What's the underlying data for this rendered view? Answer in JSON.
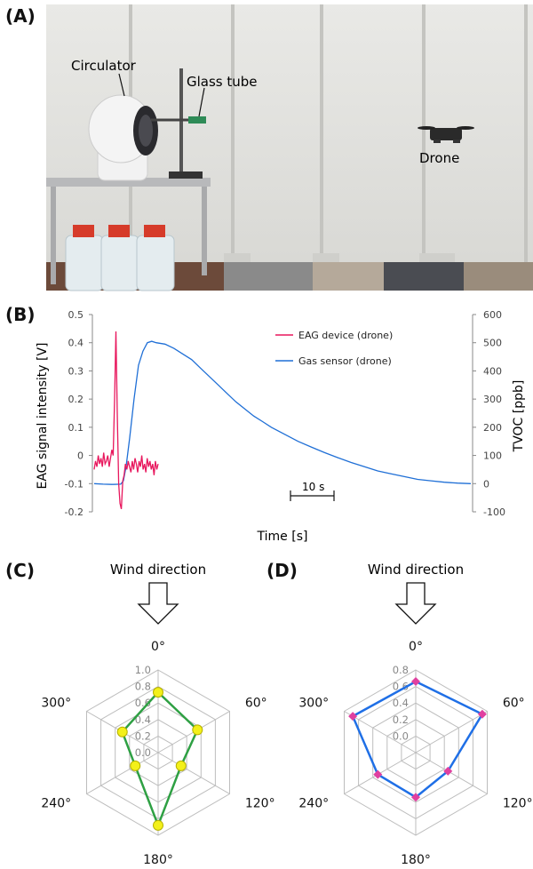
{
  "panels": {
    "a": {
      "label": "(A)",
      "annotations": {
        "circulator": "Circulator",
        "glass_tube": "Glass tube",
        "drone": "Drone"
      }
    },
    "b": {
      "label": "(B)",
      "scale_bar_label": "10 s"
    },
    "c": {
      "label": "(C)",
      "wind_label": "Wind direction"
    },
    "d": {
      "label": "(D)",
      "wind_label": "Wind direction"
    }
  },
  "chart_data": [
    {
      "type": "line",
      "panel": "B",
      "xlabel": "Time [s]",
      "ylabel_left": "EAG signal intensity [V]",
      "ylabel_right": "TVOC [ppb]",
      "ylim_left": [
        -0.2,
        0.5
      ],
      "yticks_left": [
        "0.5",
        "0.4",
        "0.3",
        "0.2",
        "0.1",
        "0",
        "-0.1",
        "-0.2"
      ],
      "ylim_right": [
        -100,
        600
      ],
      "yticks_right": [
        "600",
        "500",
        "400",
        "300",
        "200",
        "100",
        "0",
        "-100"
      ],
      "legend_position": "top-right",
      "series": [
        {
          "name": "EAG device (drone)",
          "axis": "left",
          "color": "#e8175d",
          "x": [
            0,
            1,
            2,
            3,
            4,
            5,
            6,
            7,
            8,
            9,
            10,
            11,
            12,
            13,
            14,
            15,
            16,
            17,
            18,
            19,
            20,
            21,
            22,
            23,
            24,
            25,
            26,
            27,
            28,
            29,
            30,
            31,
            32,
            33,
            34,
            35,
            36,
            37,
            38,
            39,
            40,
            41,
            42,
            43,
            44,
            45,
            46,
            47
          ],
          "values": [
            -0.05,
            -0.02,
            -0.04,
            0.0,
            -0.03,
            -0.01,
            -0.04,
            0.01,
            -0.03,
            -0.02,
            0.0,
            -0.04,
            -0.01,
            0.02,
            0.0,
            0.2,
            0.44,
            0.15,
            -0.1,
            -0.17,
            -0.19,
            -0.09,
            -0.07,
            -0.03,
            -0.05,
            -0.02,
            -0.04,
            -0.06,
            -0.02,
            -0.05,
            -0.01,
            -0.03,
            -0.06,
            -0.02,
            -0.04,
            0.0,
            -0.05,
            -0.03,
            -0.06,
            -0.01,
            -0.04,
            -0.02,
            -0.05,
            -0.03,
            -0.07,
            -0.02,
            -0.05,
            -0.03
          ]
        },
        {
          "name": "Gas sensor (drone)",
          "axis": "right",
          "color": "#1f6fd6",
          "x": [
            0,
            10,
            20,
            30,
            33,
            36,
            40,
            45,
            50,
            55,
            60,
            65,
            70,
            80,
            90,
            100,
            110,
            120,
            130,
            140,
            150,
            160,
            170,
            180,
            190,
            200,
            215,
            230,
            245,
            260,
            275,
            290,
            305,
            320,
            335,
            350,
            365,
            380,
            395,
            410,
            425
          ],
          "values": [
            0,
            -2,
            -3,
            -2,
            10,
            60,
            160,
            300,
            420,
            470,
            500,
            505,
            500,
            495,
            480,
            460,
            440,
            410,
            380,
            350,
            320,
            290,
            265,
            240,
            220,
            200,
            175,
            150,
            130,
            110,
            92,
            75,
            60,
            45,
            35,
            25,
            15,
            10,
            5,
            2,
            0
          ]
        }
      ]
    },
    {
      "type": "radar",
      "panel": "C",
      "angles": [
        "0°",
        "60°",
        "120°",
        "180°",
        "240°",
        "300°"
      ],
      "values": [
        0.73,
        0.55,
        0.32,
        0.88,
        0.32,
        0.5
      ],
      "rlim": [
        0.0,
        1.0
      ],
      "ticks": [
        "0.0",
        "0.2",
        "0.4",
        "0.6",
        "0.8",
        "1.0"
      ],
      "line_color": "#2ea043",
      "marker_color": "#f3f01a"
    },
    {
      "type": "radar",
      "panel": "D",
      "angles": [
        "0°",
        "60°",
        "120°",
        "180°",
        "240°",
        "300°"
      ],
      "values": [
        0.66,
        0.73,
        0.25,
        0.34,
        0.33,
        0.68
      ],
      "rlim": [
        -0.2,
        0.8
      ],
      "ticks": [
        "0.0",
        "0.2",
        "0.4",
        "0.6",
        "0.8"
      ],
      "line_color": "#1f6fe6",
      "marker_color": "#e040a0"
    }
  ]
}
